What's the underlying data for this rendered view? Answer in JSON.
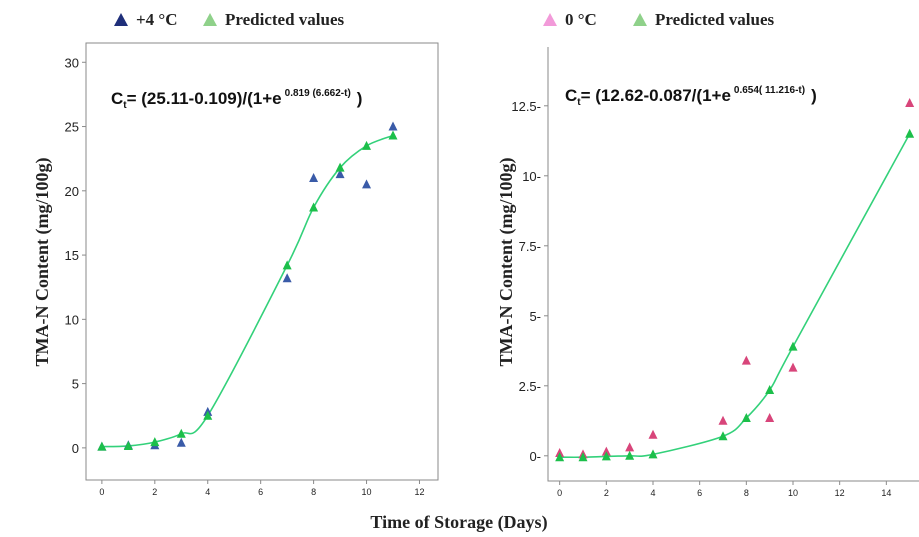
{
  "shared": {
    "xlabel": "Time of Storage (Days)",
    "ylabel": "TMA-N Content (mg/100g)"
  },
  "colors": {
    "observed_plus4": "#3a5ba8",
    "legend_plus4": "#1f2f7a",
    "observed_0": "#d8457a",
    "legend_0": "#f29ad9",
    "predicted": "#1cbf4a",
    "legend_predicted": "#8fd18a",
    "curve": "#33d17a"
  },
  "chart_data": [
    {
      "type": "scatter",
      "legend": [
        {
          "marker": "triangle",
          "label": "+4 °C"
        },
        {
          "marker": "triangle",
          "label": "Predicted values"
        }
      ],
      "equation": {
        "lhs": "C",
        "sub": "t",
        "main": "= (25.11-0.109)/(1+e",
        "exp": "0.819 (6.662-t)",
        "close": ")"
      },
      "xlim": [
        -0.6,
        12.7
      ],
      "ylim": [
        -2.5,
        31.5
      ],
      "xticks": [
        0,
        2,
        4,
        6,
        8,
        10,
        12
      ],
      "yticks": [
        0,
        5,
        10,
        15,
        20,
        25,
        30
      ],
      "ytick_labels": [
        "0",
        "5",
        "10",
        "15",
        "20",
        "25",
        "30"
      ],
      "series": [
        {
          "role": "observed",
          "x": [
            0,
            1,
            2,
            3,
            4,
            7,
            8,
            9,
            10,
            11
          ],
          "y": [
            0.1,
            0.2,
            0.2,
            0.4,
            2.8,
            13.2,
            21.0,
            21.3,
            20.5,
            25.0
          ]
        },
        {
          "role": "predicted",
          "x": [
            0,
            1,
            2,
            3,
            4,
            7,
            8,
            9,
            10,
            11
          ],
          "y": [
            0.1,
            0.15,
            0.45,
            1.1,
            2.5,
            14.2,
            18.7,
            21.8,
            23.5,
            24.3
          ]
        }
      ]
    },
    {
      "type": "scatter",
      "legend": [
        {
          "marker": "triangle",
          "label": "0 °C"
        },
        {
          "marker": "triangle",
          "label": "Predicted values"
        }
      ],
      "equation": {
        "lhs": "C",
        "sub": "t",
        "main": "= (12.62-0.087/(1+e",
        "exp": "0.654( 11.216-t)",
        "close": ")"
      },
      "xlim": [
        -0.5,
        15.4
      ],
      "ylim": [
        -0.9,
        14.6
      ],
      "xticks": [
        0,
        2,
        4,
        6,
        8,
        10,
        12,
        14
      ],
      "yticks": [
        0,
        2.5,
        5,
        7.5,
        10,
        12.5
      ],
      "ytick_labels": [
        "0-",
        "2.5-",
        "5-",
        "7.5-",
        "10-",
        "12.5-"
      ],
      "series": [
        {
          "role": "observed",
          "x": [
            0,
            1,
            2,
            3,
            4,
            7,
            8,
            9,
            10,
            15
          ],
          "y": [
            0.1,
            0.05,
            0.15,
            0.3,
            0.75,
            1.25,
            3.4,
            1.35,
            3.15,
            12.6
          ]
        },
        {
          "role": "predicted",
          "x": [
            0,
            1,
            2,
            3,
            4,
            7,
            8,
            9,
            10,
            15
          ],
          "y": [
            -0.05,
            -0.05,
            -0.02,
            0.0,
            0.05,
            0.7,
            1.35,
            2.35,
            3.9,
            11.5
          ]
        }
      ]
    }
  ]
}
